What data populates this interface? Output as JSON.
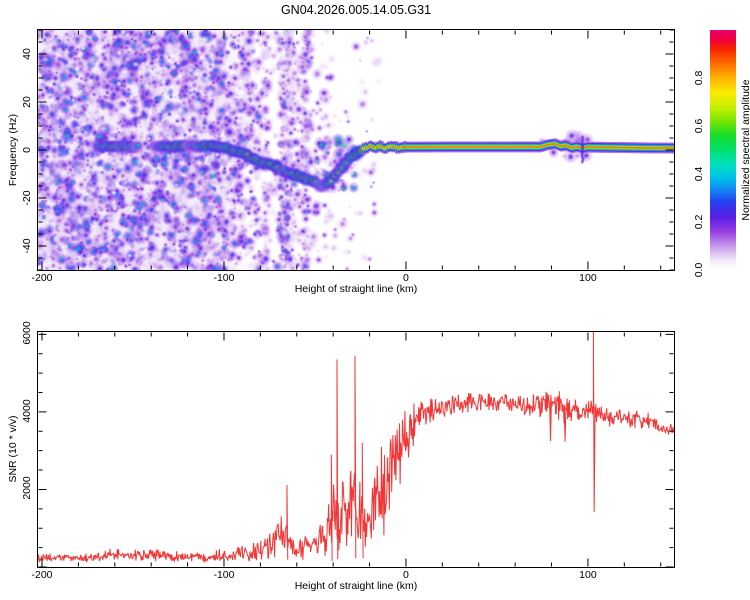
{
  "page": {
    "title": "GN04.2026.005.14.05.G31"
  },
  "colors": {
    "frame": "#000000",
    "snr_line": "#f23636",
    "background": "#ffffff"
  },
  "chart_data": [
    {
      "type": "heatmap",
      "title": "GN04.2026.005.14.05.G31",
      "xlabel": "Height of straight line (km)",
      "ylabel": "Frequency (Hz)",
      "x_range": [
        -202.2,
        147.3
      ],
      "y_range": [
        -50,
        50
      ],
      "x_ticks": [
        -200,
        -100,
        0,
        100
      ],
      "x_minor": 20,
      "y_ticks": [
        -40,
        -20,
        0,
        20,
        40
      ],
      "y_minor": 5,
      "grid": false,
      "colorbar": {
        "label": "Normalized spectral amplitude",
        "ticks": [
          "0.0",
          "0.2",
          "0.4",
          "0.6",
          "0.8"
        ],
        "tick_values": [
          0.0,
          0.2,
          0.4,
          0.6,
          0.8
        ],
        "range": [
          0,
          1
        ]
      },
      "colormap_stops": [
        [
          0.0,
          255,
          255,
          255
        ],
        [
          0.04,
          242,
          230,
          248
        ],
        [
          0.1,
          196,
          150,
          235
        ],
        [
          0.16,
          150,
          60,
          225
        ],
        [
          0.22,
          90,
          30,
          230
        ],
        [
          0.28,
          40,
          60,
          240
        ],
        [
          0.33,
          20,
          130,
          245
        ],
        [
          0.38,
          0,
          190,
          235
        ],
        [
          0.44,
          0,
          225,
          190
        ],
        [
          0.5,
          0,
          225,
          110
        ],
        [
          0.56,
          20,
          220,
          40
        ],
        [
          0.62,
          120,
          230,
          0
        ],
        [
          0.68,
          200,
          240,
          0
        ],
        [
          0.74,
          250,
          235,
          0
        ],
        [
          0.8,
          255,
          180,
          0
        ],
        [
          0.86,
          255,
          110,
          0
        ],
        [
          0.92,
          248,
          40,
          0
        ],
        [
          0.96,
          240,
          0,
          60
        ],
        [
          1.0,
          232,
          0,
          110
        ]
      ],
      "noise_regions": [
        {
          "x0": -202,
          "x1": -98,
          "count": 3000,
          "amp": 0.38
        },
        {
          "x0": -98,
          "x1": -80,
          "count": 330,
          "amp": 0.3
        },
        {
          "x0": -80,
          "x1": -40,
          "count": 160,
          "amp": 0.2
        },
        {
          "x0": -40,
          "x1": -15,
          "count": 50,
          "amp": 0.14
        }
      ],
      "streaks": [
        {
          "x": -66,
          "hw": 5,
          "count": 230,
          "amp": 0.34
        },
        {
          "x": -55,
          "hw": 2.5,
          "count": 90,
          "amp": 0.28
        },
        {
          "x": -60,
          "hw": 8,
          "count": 80,
          "amp": 0.2
        },
        {
          "x": -77,
          "hw": 2,
          "count": 60,
          "amp": 0.22
        }
      ],
      "scatter_regions": [
        {
          "x0": -50,
          "x1": -27,
          "f0": -16,
          "f1": 5,
          "count": 60,
          "amp": 0.5
        },
        {
          "x0": -72,
          "x1": -52,
          "f0": -14,
          "f1": -2,
          "count": 40,
          "amp": 0.45
        },
        {
          "x0": -95,
          "x1": -75,
          "f0": -8,
          "f1": 2,
          "count": 30,
          "amp": 0.4
        },
        {
          "x0": 74,
          "x1": 100,
          "f0": -3,
          "f1": 6,
          "count": 35,
          "amp": 0.22
        }
      ],
      "trace_blobs": [
        [
          -170,
          1.5,
          0.5
        ],
        [
          -166,
          1.5,
          0.65
        ],
        [
          -162,
          1.5,
          0.72
        ],
        [
          -158,
          1.5,
          0.6
        ],
        [
          -154,
          1.5,
          0.68
        ],
        [
          -150,
          1.5,
          0.6
        ],
        [
          -147,
          1.5,
          0.45
        ],
        [
          -143,
          1.5,
          0.0
        ],
        [
          -139,
          1.5,
          0.35
        ],
        [
          -135,
          1.5,
          0.55
        ],
        [
          -131,
          1.5,
          0.68
        ],
        [
          -127,
          1.5,
          0.72
        ],
        [
          -123,
          1.5,
          0.75
        ],
        [
          -119,
          1.5,
          0.5
        ],
        [
          -115,
          1.5,
          0.62
        ],
        [
          -111,
          1.5,
          0.78
        ],
        [
          -107,
          1.5,
          0.85
        ],
        [
          -103,
          1.2,
          0.82
        ],
        [
          -99,
          0.8,
          0.72
        ],
        [
          -95,
          0.0,
          0.75
        ],
        [
          -91,
          -1.2,
          0.8
        ],
        [
          -87,
          -2.6,
          0.8
        ],
        [
          -83,
          -4.0,
          0.84
        ],
        [
          -79,
          -5.2,
          0.82
        ],
        [
          -75,
          -6.2,
          0.78
        ],
        [
          -71,
          -7.4,
          0.8
        ],
        [
          -67,
          -8.6,
          0.72
        ],
        [
          -63,
          -9.6,
          0.76
        ],
        [
          -59,
          -10.8,
          0.8
        ],
        [
          -55,
          -12.0,
          0.72
        ],
        [
          -51,
          -13.2,
          0.76
        ],
        [
          -48,
          -14.6,
          0.62
        ],
        [
          -45,
          -15.2,
          0.55
        ],
        [
          -43,
          -13.8,
          0.68
        ],
        [
          -41,
          -12.2,
          0.62
        ],
        [
          -39,
          -10.4,
          0.7
        ],
        [
          -37,
          -8.6,
          0.66
        ],
        [
          -35,
          -6.8,
          0.72
        ],
        [
          -33,
          -5.0,
          0.7
        ],
        [
          -31,
          -3.4,
          0.76
        ],
        [
          -29,
          -2.2,
          0.82
        ],
        [
          -27,
          -1.2,
          0.86
        ],
        [
          -25,
          -0.4,
          0.88
        ],
        [
          -24,
          0.5,
          0.9
        ]
      ],
      "trace_line": {
        "from": -24,
        "to": 147.3,
        "amp": 0.97,
        "freq_profile": [
          [
            -24,
            0.5
          ],
          [
            -20,
            1.4
          ],
          [
            -17,
            0.8
          ],
          [
            -14,
            1.5
          ],
          [
            -11,
            0.9
          ],
          [
            -8,
            1.3
          ],
          [
            -5,
            1.0
          ],
          [
            0,
            1.2
          ],
          [
            20,
            1.3
          ],
          [
            50,
            1.3
          ],
          [
            74,
            1.3
          ],
          [
            78,
            2.2
          ],
          [
            82,
            2.6
          ],
          [
            85,
            1.6
          ],
          [
            88,
            2.0
          ],
          [
            91,
            0.9
          ],
          [
            94,
            1.4
          ],
          [
            97,
            0.8
          ],
          [
            100,
            1.2
          ],
          [
            110,
            1.1
          ],
          [
            130,
            0.9
          ],
          [
            147.3,
            0.8
          ]
        ]
      },
      "disturbance_dash": {
        "x": 97,
        "f0": -5,
        "f1": 6,
        "amp": 0.22
      }
    },
    {
      "type": "line",
      "xlabel": "Height of straight line (km)",
      "ylabel": "SNR (10 * v/v)",
      "x_range": [
        -202.2,
        147.3
      ],
      "y_range": [
        0,
        6060
      ],
      "x_ticks": [
        -200,
        -100,
        0,
        100
      ],
      "x_minor": 20,
      "y_ticks": [
        2000,
        4000,
        6000
      ],
      "y_minor": 500,
      "grid": false,
      "line_color": "#f23636",
      "envelope": [
        [
          -202,
          220,
          120
        ],
        [
          -195,
          230,
          130
        ],
        [
          -185,
          240,
          140
        ],
        [
          -175,
          235,
          140
        ],
        [
          -165,
          280,
          170
        ],
        [
          -158,
          320,
          200
        ],
        [
          -152,
          290,
          170
        ],
        [
          -147,
          310,
          190
        ],
        [
          -141,
          330,
          210
        ],
        [
          -135,
          300,
          180
        ],
        [
          -128,
          270,
          160
        ],
        [
          -120,
          260,
          150
        ],
        [
          -112,
          270,
          160
        ],
        [
          -104,
          290,
          180
        ],
        [
          -98,
          310,
          200
        ],
        [
          -92,
          360,
          240
        ],
        [
          -87,
          390,
          280
        ],
        [
          -82,
          450,
          330
        ],
        [
          -78,
          520,
          400
        ],
        [
          -74,
          600,
          480
        ],
        [
          -71,
          800,
          550
        ],
        [
          -68,
          900,
          600
        ],
        [
          -66,
          700,
          500
        ],
        [
          -63,
          480,
          330
        ],
        [
          -60,
          430,
          300
        ],
        [
          -57,
          470,
          330
        ],
        [
          -53,
          530,
          380
        ],
        [
          -49,
          620,
          460
        ],
        [
          -46,
          750,
          600
        ],
        [
          -43,
          900,
          750
        ],
        [
          -41,
          1100,
          950
        ],
        [
          -39,
          1400,
          1200
        ],
        [
          -37,
          1200,
          1000
        ],
        [
          -35,
          1500,
          1300
        ],
        [
          -33,
          1300,
          1100
        ],
        [
          -31,
          1500,
          1300
        ],
        [
          -29,
          1700,
          1450
        ],
        [
          -27,
          1400,
          1200
        ],
        [
          -25,
          1500,
          1250
        ],
        [
          -23,
          1300,
          1100
        ],
        [
          -21,
          1600,
          1300
        ],
        [
          -19,
          1400,
          1150
        ],
        [
          -17,
          1800,
          1400
        ],
        [
          -15,
          1600,
          1250
        ],
        [
          -13,
          1900,
          1400
        ],
        [
          -11,
          2100,
          1450
        ],
        [
          -9,
          2400,
          1400
        ],
        [
          -7,
          2600,
          1300
        ],
        [
          -5,
          2800,
          1200
        ],
        [
          -3,
          3000,
          1050
        ],
        [
          -1,
          3200,
          950
        ],
        [
          2,
          3450,
          800
        ],
        [
          5,
          3650,
          650
        ],
        [
          8,
          3800,
          550
        ],
        [
          12,
          3950,
          450
        ],
        [
          16,
          4050,
          380
        ],
        [
          20,
          4120,
          330
        ],
        [
          25,
          4180,
          300
        ],
        [
          30,
          4220,
          290
        ],
        [
          36,
          4260,
          290
        ],
        [
          42,
          4280,
          300
        ],
        [
          48,
          4240,
          310
        ],
        [
          54,
          4200,
          300
        ],
        [
          60,
          4170,
          320
        ],
        [
          66,
          4150,
          330
        ],
        [
          72,
          4180,
          360
        ],
        [
          76,
          4220,
          420
        ],
        [
          80,
          4150,
          480
        ],
        [
          84,
          4200,
          460
        ],
        [
          88,
          4050,
          420
        ],
        [
          92,
          4020,
          380
        ],
        [
          96,
          4000,
          350
        ],
        [
          100,
          4010,
          360
        ],
        [
          104,
          3950,
          400
        ],
        [
          108,
          3920,
          360
        ],
        [
          114,
          3890,
          320
        ],
        [
          120,
          3840,
          300
        ],
        [
          127,
          3790,
          290
        ],
        [
          134,
          3720,
          280
        ],
        [
          141,
          3600,
          280
        ],
        [
          147,
          3480,
          280
        ]
      ],
      "spikes": [
        {
          "x": -65.4,
          "peak": 2115
        },
        {
          "x": -41,
          "peak": 2900
        },
        {
          "x": -37.9,
          "peak": 5350
        },
        {
          "x": -28,
          "peak": 5450
        },
        {
          "x": -24,
          "peak": 3200
        },
        {
          "x": 79,
          "dip": 3250
        },
        {
          "x": 87,
          "dip": 3230
        },
        {
          "x": 103,
          "peak": 6080,
          "dip": 1420
        }
      ]
    }
  ]
}
